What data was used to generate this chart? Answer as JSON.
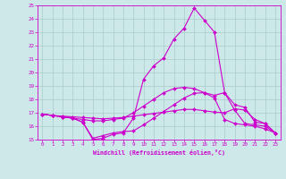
{
  "xlabel": "Windchill (Refroidissement éolien,°C)",
  "bg_color": "#cce8e8",
  "grid_color": "#aacccc",
  "line_color": "#cc00cc",
  "xlim": [
    -0.5,
    23.5
  ],
  "ylim": [
    15,
    25
  ],
  "xticks": [
    0,
    1,
    2,
    3,
    4,
    5,
    6,
    7,
    8,
    9,
    10,
    11,
    12,
    13,
    14,
    15,
    16,
    17,
    18,
    19,
    20,
    21,
    22,
    23
  ],
  "yticks": [
    15,
    16,
    17,
    18,
    19,
    20,
    21,
    22,
    23,
    24,
    25
  ],
  "line1_x": [
    0,
    1,
    2,
    3,
    4,
    5,
    6,
    7,
    8,
    9,
    10,
    11,
    12,
    13,
    14,
    15,
    16,
    17,
    18,
    19,
    20,
    21,
    22,
    23
  ],
  "line1_y": [
    16.9,
    16.8,
    16.7,
    16.6,
    16.3,
    15.1,
    15.3,
    15.5,
    15.6,
    15.65,
    16.1,
    16.6,
    17.1,
    17.6,
    18.1,
    18.45,
    18.5,
    18.1,
    16.5,
    16.2,
    16.1,
    16.0,
    15.8,
    15.5
  ],
  "line2_x": [
    0,
    1,
    2,
    3,
    4,
    5,
    6,
    7,
    8,
    9,
    10,
    11,
    12,
    13,
    14,
    15,
    16,
    17,
    18,
    19,
    20,
    21,
    22,
    23
  ],
  "line2_y": [
    16.9,
    16.8,
    16.7,
    16.6,
    16.3,
    15.0,
    15.1,
    15.4,
    15.5,
    16.6,
    19.5,
    20.5,
    21.1,
    22.5,
    23.3,
    24.8,
    23.9,
    23.0,
    18.5,
    17.2,
    16.2,
    16.1,
    16.0,
    15.5
  ],
  "line3_x": [
    0,
    1,
    2,
    3,
    4,
    5,
    6,
    7,
    8,
    9,
    10,
    11,
    12,
    13,
    14,
    15,
    16,
    17,
    18,
    19,
    20,
    21,
    22,
    23
  ],
  "line3_y": [
    16.9,
    16.8,
    16.7,
    16.6,
    16.5,
    16.4,
    16.4,
    16.5,
    16.6,
    17.0,
    17.5,
    18.0,
    18.5,
    18.8,
    18.9,
    18.8,
    18.5,
    18.3,
    18.5,
    17.6,
    17.4,
    16.3,
    16.2,
    15.5
  ],
  "line4_x": [
    0,
    1,
    2,
    3,
    4,
    5,
    6,
    7,
    8,
    9,
    10,
    11,
    12,
    13,
    14,
    15,
    16,
    17,
    18,
    19,
    20,
    21,
    22,
    23
  ],
  "line4_y": [
    16.9,
    16.8,
    16.75,
    16.7,
    16.65,
    16.6,
    16.55,
    16.6,
    16.65,
    16.75,
    16.85,
    16.95,
    17.05,
    17.15,
    17.25,
    17.25,
    17.15,
    17.05,
    17.0,
    17.3,
    17.2,
    16.5,
    16.2,
    15.5
  ]
}
